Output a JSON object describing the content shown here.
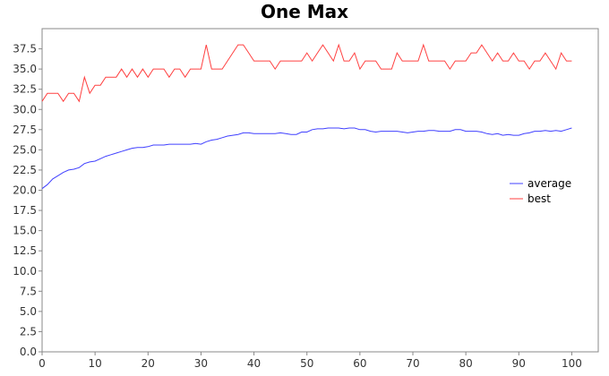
{
  "chart_data": {
    "type": "line",
    "title": "One Max",
    "xlabel": "",
    "ylabel": "",
    "xlim": [
      0,
      105
    ],
    "ylim": [
      0,
      40
    ],
    "x_ticks": [
      0,
      10,
      20,
      30,
      40,
      50,
      60,
      70,
      80,
      90,
      100
    ],
    "y_ticks": [
      0.0,
      2.5,
      5.0,
      7.5,
      10.0,
      12.5,
      15.0,
      17.5,
      20.0,
      22.5,
      25.0,
      27.5,
      30.0,
      32.5,
      35.0,
      37.5
    ],
    "x_tick_labels": [
      "0",
      "10",
      "20",
      "30",
      "40",
      "50",
      "60",
      "70",
      "80",
      "90",
      "100"
    ],
    "y_tick_labels": [
      "0.0",
      "2.5",
      "5.0",
      "7.5",
      "10.0",
      "12.5",
      "15.0",
      "17.5",
      "20.0",
      "22.5",
      "25.0",
      "27.5",
      "30.0",
      "32.5",
      "35.0",
      "37.5"
    ],
    "grid": false,
    "legend_position": "right",
    "series": [
      {
        "name": "average",
        "color": "#4040ff",
        "x": [
          0,
          1,
          2,
          3,
          4,
          5,
          6,
          7,
          8,
          9,
          10,
          11,
          12,
          13,
          14,
          15,
          16,
          17,
          18,
          19,
          20,
          21,
          22,
          23,
          24,
          25,
          26,
          27,
          28,
          29,
          30,
          31,
          32,
          33,
          34,
          35,
          36,
          37,
          38,
          39,
          40,
          41,
          42,
          43,
          44,
          45,
          46,
          47,
          48,
          49,
          50,
          51,
          52,
          53,
          54,
          55,
          56,
          57,
          58,
          59,
          60,
          61,
          62,
          63,
          64,
          65,
          66,
          67,
          68,
          69,
          70,
          71,
          72,
          73,
          74,
          75,
          76,
          77,
          78,
          79,
          80,
          81,
          82,
          83,
          84,
          85,
          86,
          87,
          88,
          89,
          90,
          91,
          92,
          93,
          94,
          95,
          96,
          97,
          98,
          99,
          100
        ],
        "values": [
          20.2,
          20.7,
          21.4,
          21.8,
          22.2,
          22.5,
          22.6,
          22.8,
          23.3,
          23.5,
          23.6,
          23.9,
          24.2,
          24.4,
          24.6,
          24.8,
          25.0,
          25.2,
          25.3,
          25.3,
          25.4,
          25.6,
          25.6,
          25.6,
          25.7,
          25.7,
          25.7,
          25.7,
          25.7,
          25.8,
          25.7,
          26.0,
          26.2,
          26.3,
          26.5,
          26.7,
          26.8,
          26.9,
          27.1,
          27.1,
          27.0,
          27.0,
          27.0,
          27.0,
          27.0,
          27.1,
          27.0,
          26.9,
          26.9,
          27.2,
          27.2,
          27.5,
          27.6,
          27.6,
          27.7,
          27.7,
          27.7,
          27.6,
          27.7,
          27.7,
          27.5,
          27.5,
          27.3,
          27.2,
          27.3,
          27.3,
          27.3,
          27.3,
          27.2,
          27.1,
          27.2,
          27.3,
          27.3,
          27.4,
          27.4,
          27.3,
          27.3,
          27.3,
          27.5,
          27.5,
          27.3,
          27.3,
          27.3,
          27.2,
          27.0,
          26.9,
          27.0,
          26.8,
          26.9,
          26.8,
          26.8,
          27.0,
          27.1,
          27.3,
          27.3,
          27.4,
          27.3,
          27.4,
          27.3,
          27.5,
          27.7
        ]
      },
      {
        "name": "best",
        "color": "#ff4040",
        "x": [
          0,
          1,
          2,
          3,
          4,
          5,
          6,
          7,
          8,
          9,
          10,
          11,
          12,
          13,
          14,
          15,
          16,
          17,
          18,
          19,
          20,
          21,
          22,
          23,
          24,
          25,
          26,
          27,
          28,
          29,
          30,
          31,
          32,
          33,
          34,
          35,
          36,
          37,
          38,
          39,
          40,
          41,
          42,
          43,
          44,
          45,
          46,
          47,
          48,
          49,
          50,
          51,
          52,
          53,
          54,
          55,
          56,
          57,
          58,
          59,
          60,
          61,
          62,
          63,
          64,
          65,
          66,
          67,
          68,
          69,
          70,
          71,
          72,
          73,
          74,
          75,
          76,
          77,
          78,
          79,
          80,
          81,
          82,
          83,
          84,
          85,
          86,
          87,
          88,
          89,
          90,
          91,
          92,
          93,
          94,
          95,
          96,
          97,
          98,
          99,
          100
        ],
        "values": [
          31,
          32,
          32,
          32,
          31,
          32,
          32,
          31,
          34,
          32,
          33,
          33,
          34,
          34,
          34,
          35,
          34,
          35,
          34,
          35,
          34,
          35,
          35,
          35,
          34,
          35,
          35,
          34,
          35,
          35,
          35,
          38,
          35,
          35,
          35,
          36,
          37,
          38,
          38,
          37,
          36,
          36,
          36,
          36,
          35,
          36,
          36,
          36,
          36,
          36,
          37,
          36,
          37,
          38,
          37,
          36,
          38,
          36,
          36,
          37,
          35,
          36,
          36,
          36,
          35,
          35,
          35,
          37,
          36,
          36,
          36,
          36,
          38,
          36,
          36,
          36,
          36,
          35,
          36,
          36,
          36,
          37,
          37,
          38,
          37,
          36,
          37,
          36,
          36,
          37,
          36,
          36,
          35,
          36,
          36,
          37,
          36,
          35,
          37,
          36,
          36
        ]
      }
    ]
  }
}
